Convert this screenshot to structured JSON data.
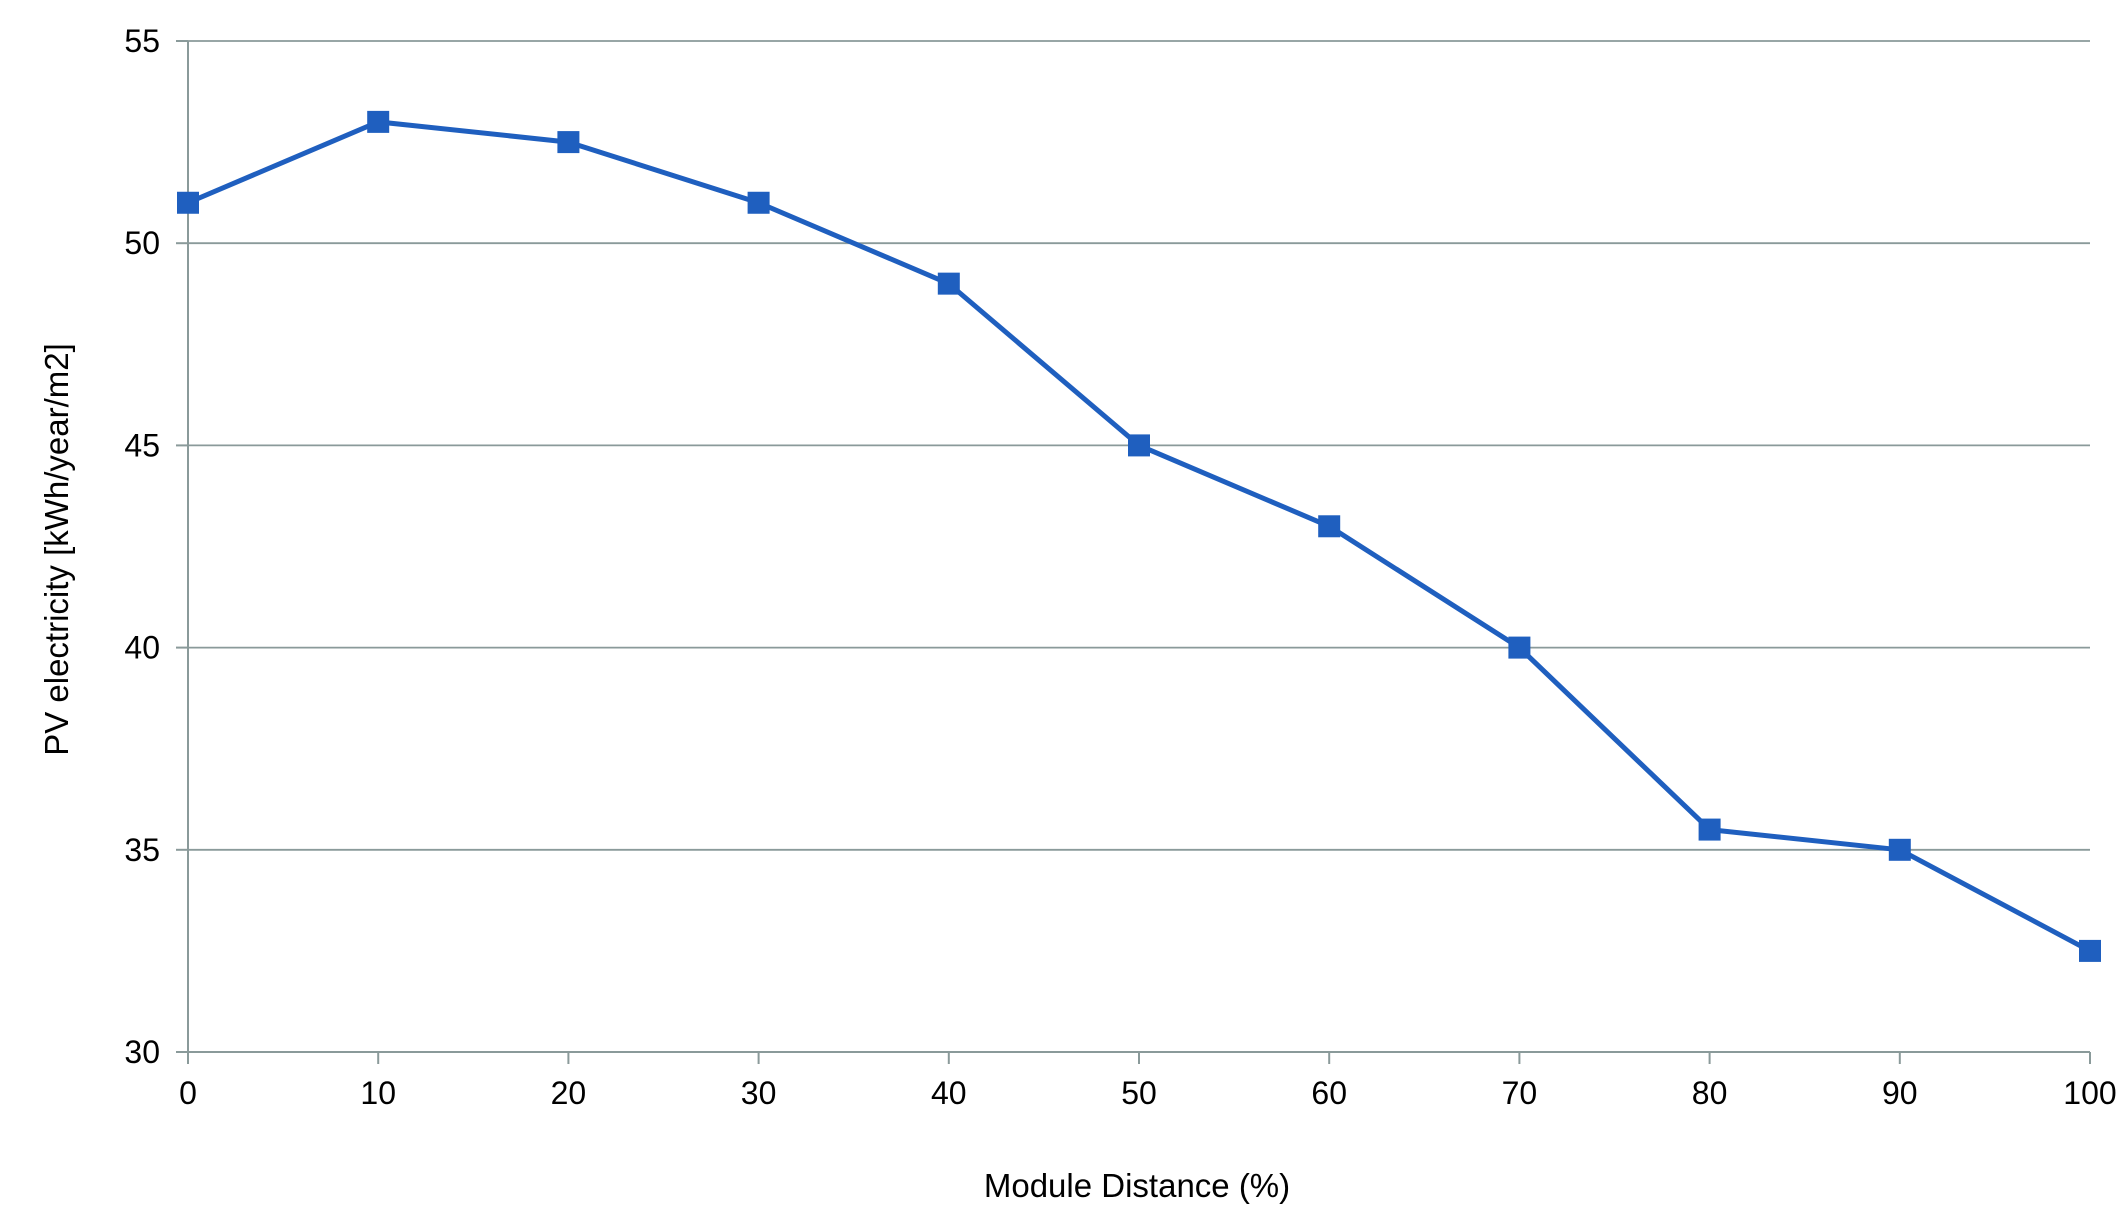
{
  "chart_data": {
    "type": "line",
    "title": "",
    "xlabel": "Module Distance (%)",
    "ylabel": "PV electricity [kWh/year/m2]",
    "x": [
      0,
      10,
      20,
      30,
      40,
      50,
      60,
      70,
      80,
      90,
      100
    ],
    "series": [
      {
        "values": [
          51,
          53,
          52.5,
          51,
          49,
          45,
          43,
          40,
          35.5,
          35,
          32.5
        ],
        "color": "#1f5fbf",
        "marker": "square"
      }
    ],
    "xlim": [
      0,
      100
    ],
    "ylim": [
      30,
      55
    ],
    "xticks": [
      0,
      10,
      20,
      30,
      40,
      50,
      60,
      70,
      80,
      90,
      100
    ],
    "yticks": [
      30,
      35,
      40,
      45,
      50,
      55
    ],
    "grid": "horizontal",
    "legend": "none"
  }
}
